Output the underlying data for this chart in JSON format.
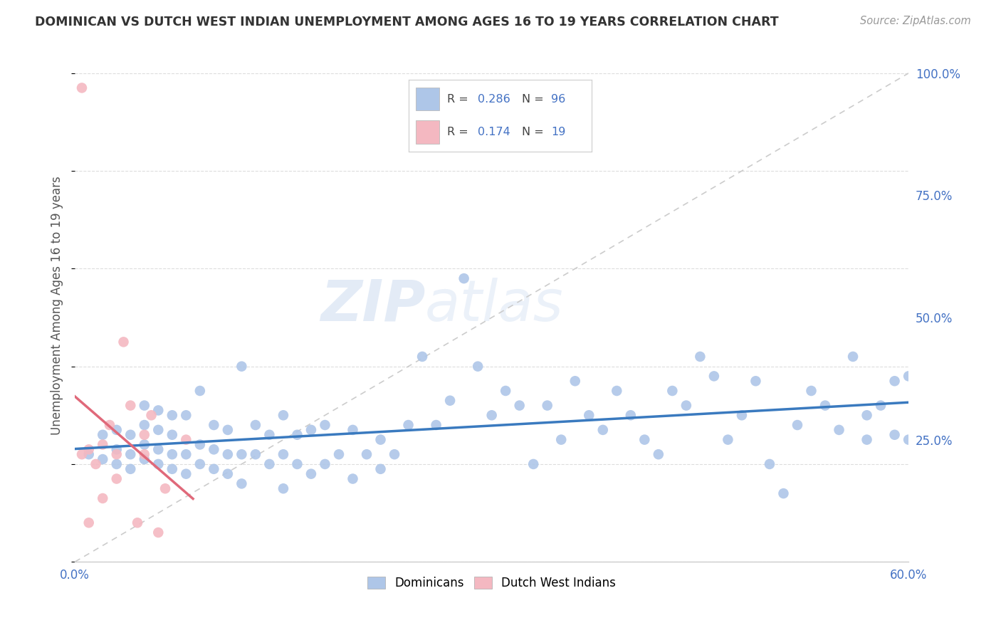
{
  "title": "DOMINICAN VS DUTCH WEST INDIAN UNEMPLOYMENT AMONG AGES 16 TO 19 YEARS CORRELATION CHART",
  "source": "Source: ZipAtlas.com",
  "ylabel": "Unemployment Among Ages 16 to 19 years",
  "xlim": [
    0.0,
    0.6
  ],
  "ylim": [
    0.0,
    1.05
  ],
  "dominican_R": "0.286",
  "dominican_N": "96",
  "dutch_R": "0.174",
  "dutch_N": "19",
  "dominican_color": "#aec6e8",
  "dutch_color": "#f4b8c1",
  "dominican_line_color": "#3a7abf",
  "dutch_line_color": "#e0697a",
  "diagonal_color": "#cccccc",
  "watermark_zip": "ZIP",
  "watermark_atlas": "atlas",
  "legend_label_dominicans": "Dominicans",
  "legend_label_dutch": "Dutch West Indians",
  "dominican_scatter_x": [
    0.01,
    0.02,
    0.02,
    0.03,
    0.03,
    0.03,
    0.04,
    0.04,
    0.04,
    0.05,
    0.05,
    0.05,
    0.05,
    0.06,
    0.06,
    0.06,
    0.06,
    0.07,
    0.07,
    0.07,
    0.07,
    0.08,
    0.08,
    0.08,
    0.09,
    0.09,
    0.09,
    0.1,
    0.1,
    0.1,
    0.11,
    0.11,
    0.11,
    0.12,
    0.12,
    0.12,
    0.13,
    0.13,
    0.14,
    0.14,
    0.15,
    0.15,
    0.15,
    0.16,
    0.16,
    0.17,
    0.17,
    0.18,
    0.18,
    0.19,
    0.2,
    0.2,
    0.21,
    0.22,
    0.22,
    0.23,
    0.24,
    0.25,
    0.26,
    0.27,
    0.28,
    0.29,
    0.3,
    0.31,
    0.32,
    0.33,
    0.34,
    0.35,
    0.36,
    0.37,
    0.38,
    0.39,
    0.4,
    0.41,
    0.42,
    0.43,
    0.44,
    0.45,
    0.46,
    0.47,
    0.48,
    0.49,
    0.5,
    0.51,
    0.52,
    0.53,
    0.54,
    0.55,
    0.56,
    0.57,
    0.57,
    0.58,
    0.59,
    0.59,
    0.6,
    0.6
  ],
  "dominican_scatter_y": [
    0.22,
    0.21,
    0.26,
    0.2,
    0.23,
    0.27,
    0.19,
    0.22,
    0.26,
    0.21,
    0.24,
    0.28,
    0.32,
    0.2,
    0.23,
    0.27,
    0.31,
    0.19,
    0.22,
    0.26,
    0.3,
    0.18,
    0.22,
    0.3,
    0.2,
    0.24,
    0.35,
    0.19,
    0.23,
    0.28,
    0.18,
    0.22,
    0.27,
    0.16,
    0.22,
    0.4,
    0.22,
    0.28,
    0.2,
    0.26,
    0.15,
    0.22,
    0.3,
    0.2,
    0.26,
    0.18,
    0.27,
    0.2,
    0.28,
    0.22,
    0.17,
    0.27,
    0.22,
    0.19,
    0.25,
    0.22,
    0.28,
    0.42,
    0.28,
    0.33,
    0.58,
    0.4,
    0.3,
    0.35,
    0.32,
    0.2,
    0.32,
    0.25,
    0.37,
    0.3,
    0.27,
    0.35,
    0.3,
    0.25,
    0.22,
    0.35,
    0.32,
    0.42,
    0.38,
    0.25,
    0.3,
    0.37,
    0.2,
    0.14,
    0.28,
    0.35,
    0.32,
    0.27,
    0.42,
    0.3,
    0.25,
    0.32,
    0.26,
    0.37,
    0.25,
    0.38
  ],
  "dutch_scatter_x": [
    0.005,
    0.005,
    0.01,
    0.01,
    0.015,
    0.02,
    0.02,
    0.025,
    0.03,
    0.03,
    0.035,
    0.04,
    0.045,
    0.05,
    0.05,
    0.055,
    0.06,
    0.065,
    0.08
  ],
  "dutch_scatter_y": [
    0.97,
    0.22,
    0.23,
    0.08,
    0.2,
    0.24,
    0.13,
    0.28,
    0.22,
    0.17,
    0.45,
    0.32,
    0.08,
    0.26,
    0.22,
    0.3,
    0.06,
    0.15,
    0.25
  ]
}
